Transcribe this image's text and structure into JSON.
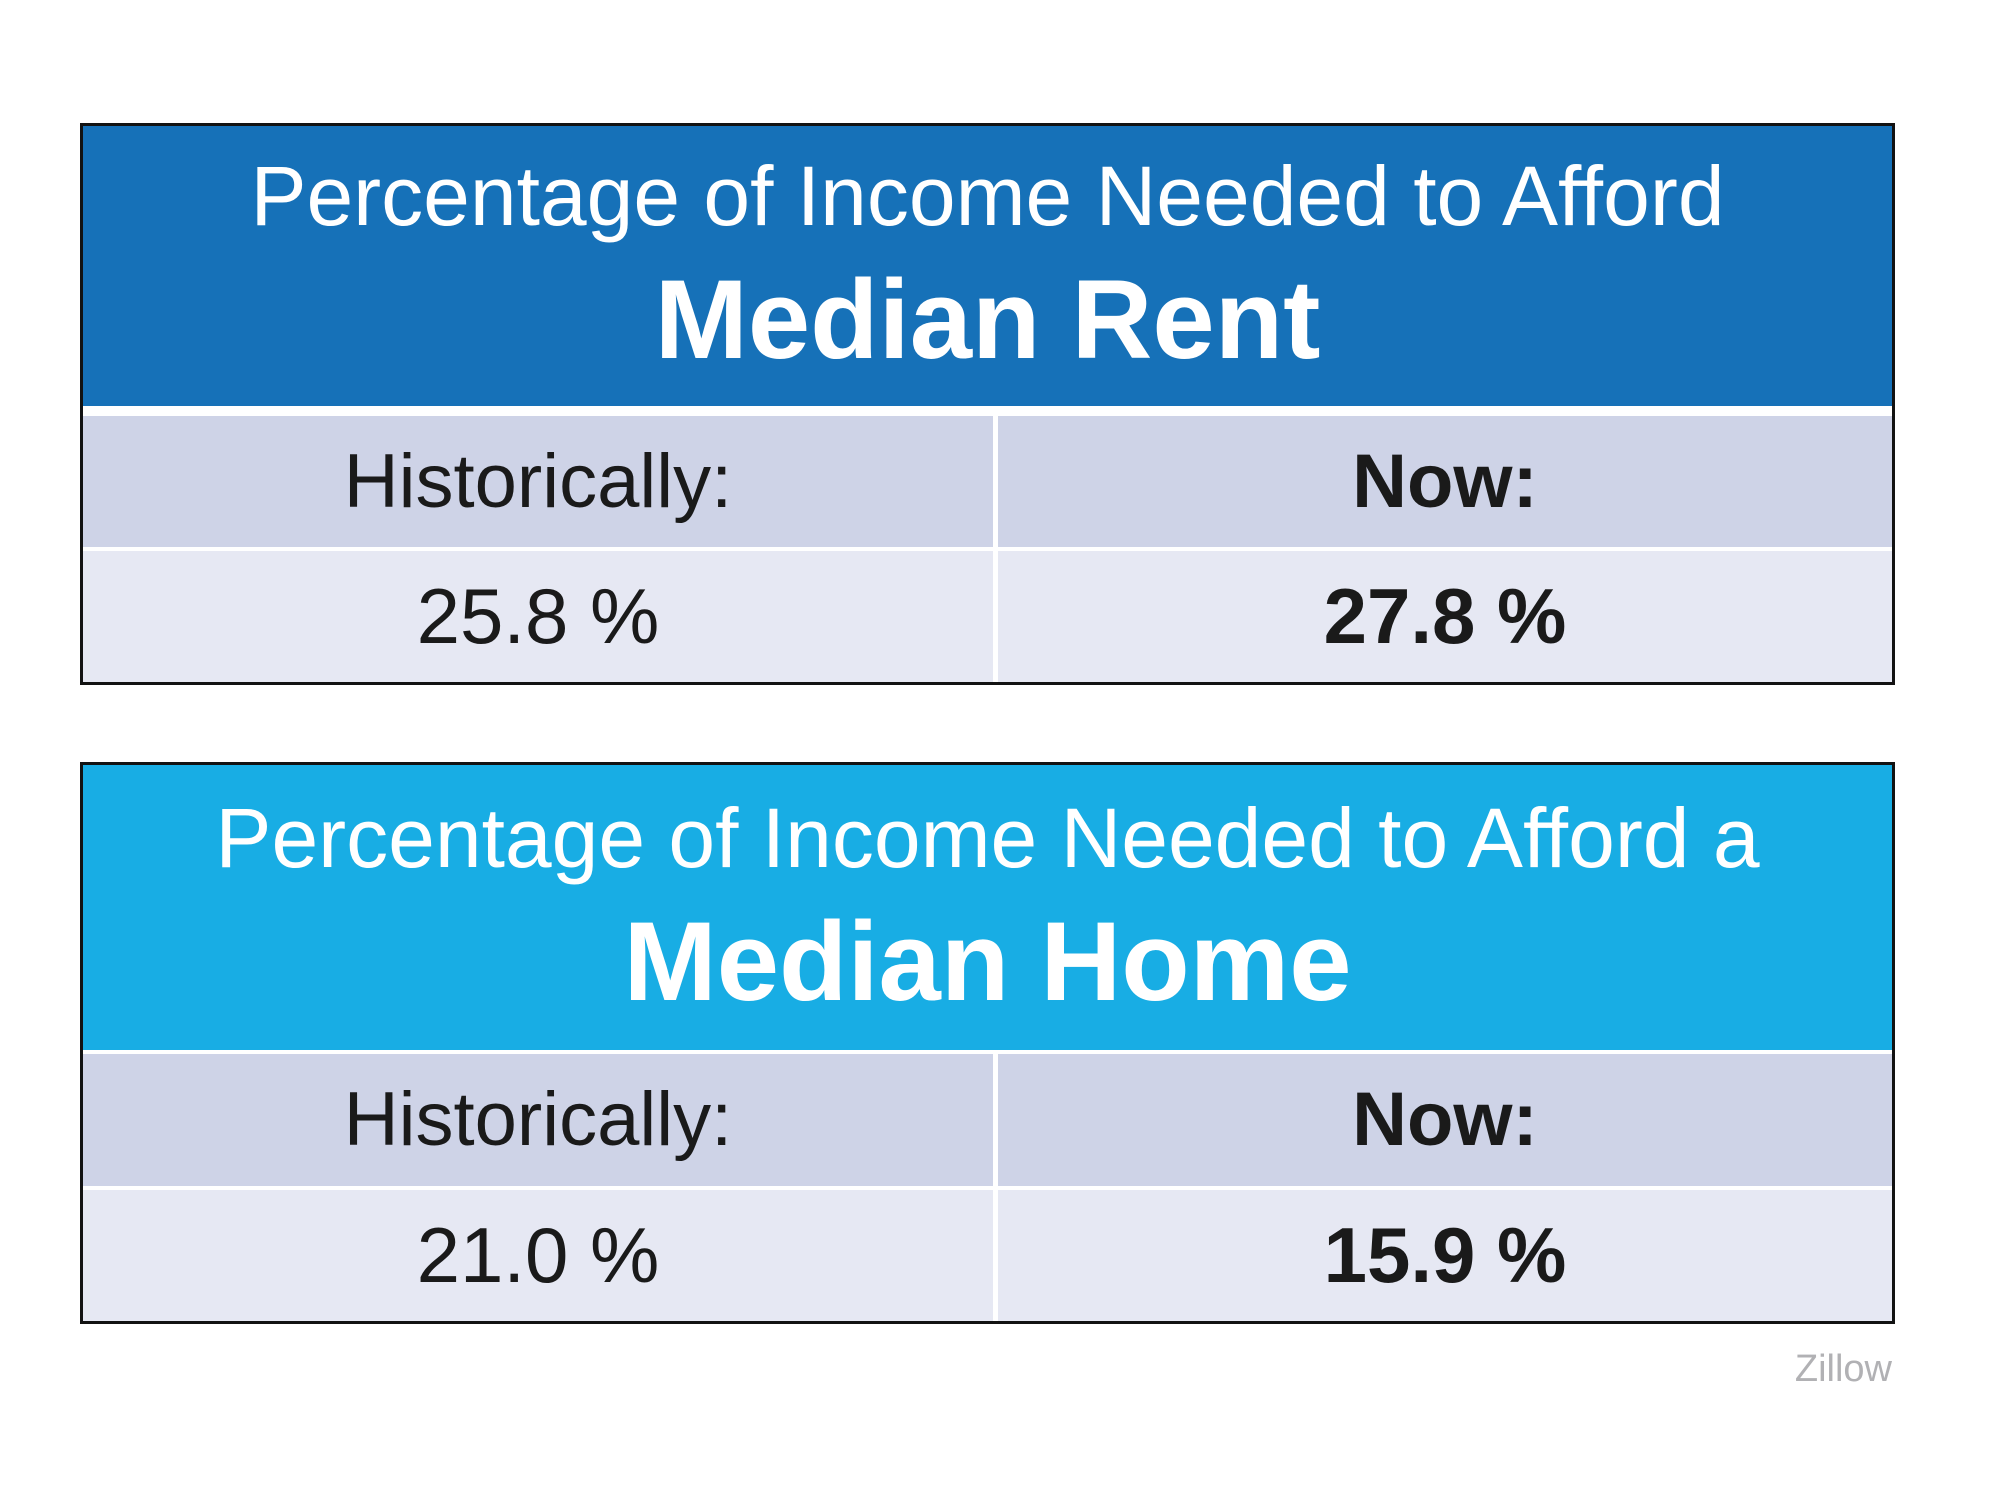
{
  "page": {
    "background": "#ffffff",
    "source_label": "Zillow"
  },
  "colors": {
    "rent_header_blue": "#1671b8",
    "home_header_cyan": "#18ade4",
    "label_row_bg": "#ced3e7",
    "value_row_bg": "#e6e8f3",
    "table_border": "#121212",
    "text_dark": "#1a1a1a",
    "source_gray": "#b1b1b4"
  },
  "tables": [
    {
      "title_line1": "Percentage of Income Needed to Afford",
      "title_line2": "Median Rent",
      "header_color": "#1671b8",
      "col1_header": "Historically:",
      "col2_header": "Now:",
      "col1_value": "25.8 %",
      "col2_value": "27.8 %"
    },
    {
      "title_line1": "Percentage of Income Needed to Afford a",
      "title_line2": "Median Home",
      "header_color": "#18ade4",
      "col1_header": "Historically:",
      "col2_header": "Now:",
      "col1_value": "21.0 %",
      "col2_value": "15.9 %"
    }
  ],
  "chart_data": [
    {
      "type": "table",
      "title": "Percentage of Income Needed to Afford Median Rent",
      "categories": [
        "Historically:",
        "Now:"
      ],
      "values": [
        25.8,
        27.8
      ],
      "unit": "%",
      "source": "Zillow"
    },
    {
      "type": "table",
      "title": "Percentage of Income Needed to Afford a Median Home",
      "categories": [
        "Historically:",
        "Now:"
      ],
      "values": [
        21.0,
        15.9
      ],
      "unit": "%",
      "source": "Zillow"
    }
  ]
}
